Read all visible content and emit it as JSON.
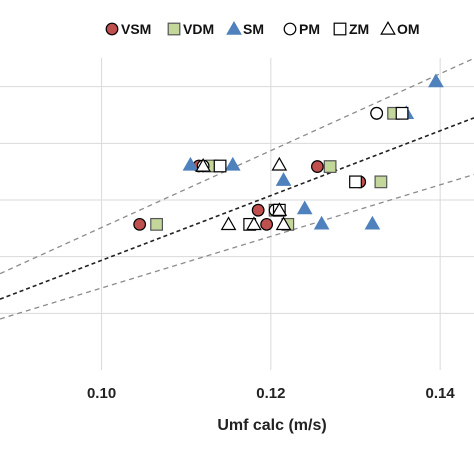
{
  "chart_data": {
    "type": "scatter",
    "title": "",
    "xlabel": "Umf calc (m/s)",
    "ylabel": "",
    "xlim": [
      0.088,
      0.144
    ],
    "ylim": [
      0.085,
      0.145
    ],
    "x_ticks": [
      0.1,
      0.12,
      0.14
    ],
    "x_tick_labels": [
      "0.10",
      "0.12",
      "0.14"
    ],
    "y_gridlines": [
      0.095,
      0.105,
      0.115,
      0.125,
      0.135
    ],
    "grid": true,
    "legend_position": "top",
    "colors": {
      "VSM": "#c0504d",
      "VDM": "#c4d79b",
      "SM": "#4f81bd",
      "PM": "#ffffff",
      "ZM": "#ffffff",
      "OM": "#ffffff",
      "grid": "#d9d9d9",
      "fit_line": "#222222",
      "band_line": "#8c8c8c"
    },
    "series": [
      {
        "name": "VSM",
        "marker": "circle-filled",
        "x": [
          0.1045,
          0.1115,
          0.1185,
          0.1195,
          0.1255,
          0.1305,
          0.1325
        ],
        "y": [
          0.1107,
          0.121,
          0.1132,
          0.1107,
          0.1209,
          0.1182,
          0.1303
        ]
      },
      {
        "name": "VDM",
        "marker": "square-filled",
        "x": [
          0.1065,
          0.113,
          0.1205,
          0.122,
          0.127,
          0.133,
          0.1345
        ],
        "y": [
          0.1107,
          0.121,
          0.1132,
          0.1107,
          0.1209,
          0.1182,
          0.1303
        ]
      },
      {
        "name": "SM",
        "marker": "triangle-filled",
        "x": [
          0.1105,
          0.1155,
          0.1215,
          0.124,
          0.126,
          0.132,
          0.136,
          0.1395
        ],
        "y": [
          0.1212,
          0.1212,
          0.1185,
          0.1135,
          0.1108,
          0.1108,
          0.1303,
          0.1359
        ]
      },
      {
        "name": "PM",
        "marker": "circle-open",
        "x": [
          0.112,
          0.1205,
          0.1325
        ],
        "y": [
          0.121,
          0.1132,
          0.1303
        ]
      },
      {
        "name": "ZM",
        "marker": "square-open",
        "x": [
          0.114,
          0.1175,
          0.121,
          0.13,
          0.1355
        ],
        "y": [
          0.121,
          0.1107,
          0.1132,
          0.1182,
          0.1303
        ]
      },
      {
        "name": "OM",
        "marker": "triangle-open",
        "x": [
          0.112,
          0.115,
          0.118,
          0.121,
          0.121,
          0.1215
        ],
        "y": [
          0.121,
          0.1107,
          0.1107,
          0.1212,
          0.1132,
          0.1107
        ]
      }
    ],
    "lines": [
      {
        "name": "fit",
        "style": "dashed",
        "x": [
          0.088,
          0.144
        ],
        "y": [
          0.0975,
          0.1295
        ]
      },
      {
        "name": "upper-bound",
        "style": "dashed-grey",
        "x": [
          0.088,
          0.144
        ],
        "y": [
          0.102,
          0.14
        ]
      },
      {
        "name": "lower-bound",
        "style": "dashed-grey",
        "x": [
          0.088,
          0.144
        ],
        "y": [
          0.094,
          0.1195
        ]
      }
    ]
  }
}
